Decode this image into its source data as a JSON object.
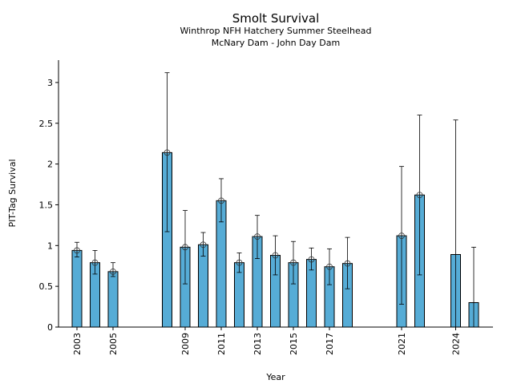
{
  "chart_data": {
    "type": "bar",
    "title": "Smolt Survival",
    "subtitle_lines": [
      "Winthrop NFH Hatchery Summer Steelhead",
      "McNary Dam - John Day Dam"
    ],
    "xlabel": "Year",
    "ylabel": "PIT-Tag Survival",
    "ylim": [
      0,
      3.28
    ],
    "xlim": [
      2001.9,
      2026.3
    ],
    "yticks": [
      0,
      0.5,
      1,
      1.5,
      2,
      2.5,
      3
    ],
    "ytick_labels": [
      "0",
      "0.5",
      "1",
      "1.5",
      "2",
      "2.5",
      "3"
    ],
    "xticks": [
      2003,
      2005,
      2009,
      2011,
      2013,
      2015,
      2017,
      2021,
      2024
    ],
    "xtick_labels": [
      "2003",
      "2005",
      "2009",
      "2011",
      "2013",
      "2015",
      "2017",
      "2021",
      "2024"
    ],
    "bar_color": "#56acd6",
    "bars": [
      {
        "year": 2003,
        "value": 0.94,
        "lower": 0.86,
        "upper": 1.04,
        "marker": true
      },
      {
        "year": 2004,
        "value": 0.79,
        "lower": 0.65,
        "upper": 0.94,
        "marker": true
      },
      {
        "year": 2005,
        "value": 0.68,
        "lower": 0.62,
        "upper": 0.79,
        "marker": true
      },
      {
        "year": 2008,
        "value": 2.14,
        "lower": 1.17,
        "upper": 3.12,
        "marker": true
      },
      {
        "year": 2009,
        "value": 0.98,
        "lower": 0.53,
        "upper": 1.43,
        "marker": true
      },
      {
        "year": 2010,
        "value": 1.01,
        "lower": 0.87,
        "upper": 1.16,
        "marker": true
      },
      {
        "year": 2011,
        "value": 1.55,
        "lower": 1.29,
        "upper": 1.82,
        "marker": true
      },
      {
        "year": 2012,
        "value": 0.79,
        "lower": 0.67,
        "upper": 0.91,
        "marker": true
      },
      {
        "year": 2013,
        "value": 1.11,
        "lower": 0.84,
        "upper": 1.37,
        "marker": true
      },
      {
        "year": 2014,
        "value": 0.88,
        "lower": 0.64,
        "upper": 1.12,
        "marker": true
      },
      {
        "year": 2015,
        "value": 0.79,
        "lower": 0.53,
        "upper": 1.05,
        "marker": true
      },
      {
        "year": 2016,
        "value": 0.83,
        "lower": 0.7,
        "upper": 0.97,
        "marker": true
      },
      {
        "year": 2017,
        "value": 0.74,
        "lower": 0.52,
        "upper": 0.96,
        "marker": true
      },
      {
        "year": 2018,
        "value": 0.78,
        "lower": 0.47,
        "upper": 1.1,
        "marker": true
      },
      {
        "year": 2021,
        "value": 1.12,
        "lower": 0.28,
        "upper": 1.97,
        "marker": true
      },
      {
        "year": 2022,
        "value": 1.62,
        "lower": 0.64,
        "upper": 2.6,
        "marker": true
      },
      {
        "year": 2024,
        "value": 0.89,
        "lower": 0.0,
        "upper": 2.54,
        "marker": false
      },
      {
        "year": 2025,
        "value": 0.3,
        "lower": 0.0,
        "upper": 0.98,
        "marker": false
      }
    ]
  }
}
